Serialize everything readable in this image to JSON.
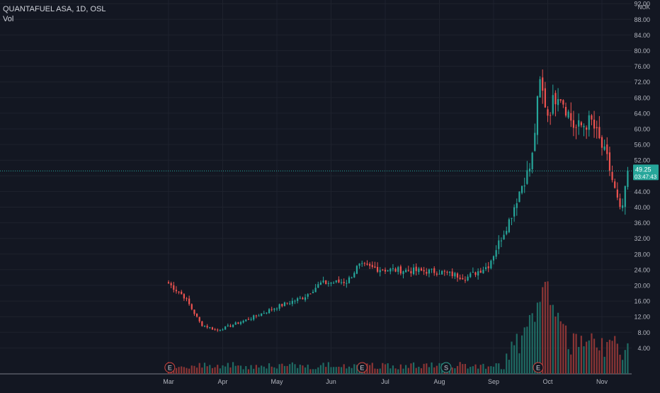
{
  "legend": {
    "symbol_line": "QUANTAFUEL ASA, 1D, OSL",
    "volume_label": "Vol"
  },
  "price_axis": {
    "currency": "NOK",
    "ticks": [
      "4.00",
      "8.00",
      "12.00",
      "16.00",
      "20.00",
      "24.00",
      "28.00",
      "32.00",
      "36.00",
      "40.00",
      "44.00",
      "48.00",
      "52.00",
      "56.00",
      "60.00",
      "64.00",
      "68.00",
      "72.00",
      "76.00",
      "80.00",
      "84.00",
      "88.00",
      "92.00"
    ]
  },
  "time_axis": {
    "ticks": [
      "Mar",
      "Apr",
      "May",
      "Jun",
      "Jul",
      "Aug",
      "Sep",
      "Oct",
      "Nov"
    ]
  },
  "last_price": {
    "price_label": "49.25",
    "countdown_label": "03:47:43",
    "value": 49.25
  },
  "event_markers": [
    {
      "label": "E",
      "month_offset": 0.05
    },
    {
      "label": "E",
      "month_offset": 3.6
    },
    {
      "label": "S",
      "month_offset": 5.15
    },
    {
      "label": "E",
      "month_offset": 6.85
    }
  ],
  "colors": {
    "background": "#131722",
    "grid": "#1e222d",
    "text": "#b2b5be",
    "up": "#26a69a",
    "down": "#ef5350",
    "vol_up": "#1f6b63",
    "vol_down": "#8b3535",
    "last_price_bg": "#26a69a"
  },
  "chart_data": {
    "type": "candlestick",
    "ylim": [
      0,
      95
    ],
    "x_ticks": [
      "Mar",
      "Apr",
      "May",
      "Jun",
      "Jul",
      "Aug",
      "Sep",
      "Oct",
      "Nov"
    ],
    "segments_close": [
      [
        0.0,
        20.5
      ],
      [
        0.3,
        17.0
      ],
      [
        0.6,
        10.0
      ],
      [
        0.9,
        8.5
      ],
      [
        1.5,
        11.5
      ],
      [
        2.0,
        14.5
      ],
      [
        2.5,
        17.0
      ],
      [
        2.8,
        20.5
      ],
      [
        3.3,
        21.0
      ],
      [
        3.5,
        25.0
      ],
      [
        4.0,
        24.0
      ],
      [
        5.0,
        23.5
      ],
      [
        5.5,
        22.0
      ],
      [
        5.9,
        25.0
      ],
      [
        6.3,
        37.0
      ],
      [
        6.5,
        45.0
      ],
      [
        6.7,
        51.0
      ],
      [
        6.85,
        72.0
      ],
      [
        7.0,
        64.0
      ],
      [
        7.2,
        70.0
      ],
      [
        7.5,
        60.0
      ],
      [
        7.8,
        62.0
      ],
      [
        8.1,
        52.0
      ],
      [
        8.35,
        38.0
      ],
      [
        8.5,
        49.25
      ]
    ],
    "volume_peak_x": 6.95,
    "volume_peak_value": 1.0
  }
}
